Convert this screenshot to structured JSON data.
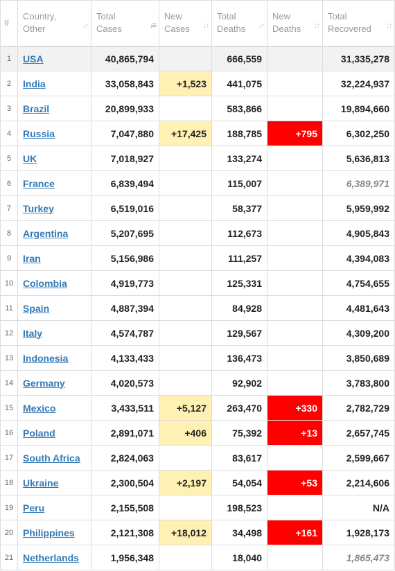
{
  "headers": {
    "num": "#",
    "country": [
      "Country,",
      "Other"
    ],
    "total_cases": [
      "Total",
      "Cases"
    ],
    "new_cases": [
      "New",
      "Cases"
    ],
    "total_deaths": [
      "Total",
      "Deaths"
    ],
    "new_deaths": [
      "New",
      "Deaths"
    ],
    "total_recovered": [
      "Total",
      "Recovered"
    ]
  },
  "sort_icon": "sort-arrows-icon",
  "rows": [
    {
      "idx": "1",
      "country": "USA",
      "total_cases": "40,865,794",
      "new_cases": "",
      "total_deaths": "666,559",
      "new_deaths": "",
      "total_recovered": "31,335,278",
      "highlight": true
    },
    {
      "idx": "2",
      "country": "India",
      "total_cases": "33,058,843",
      "new_cases": "+1,523",
      "total_deaths": "441,075",
      "new_deaths": "",
      "total_recovered": "32,224,937"
    },
    {
      "idx": "3",
      "country": "Brazil",
      "total_cases": "20,899,933",
      "new_cases": "",
      "total_deaths": "583,866",
      "new_deaths": "",
      "total_recovered": "19,894,660"
    },
    {
      "idx": "4",
      "country": "Russia",
      "total_cases": "7,047,880",
      "new_cases": "+17,425",
      "total_deaths": "188,785",
      "new_deaths": "+795",
      "total_recovered": "6,302,250"
    },
    {
      "idx": "5",
      "country": "UK",
      "total_cases": "7,018,927",
      "new_cases": "",
      "total_deaths": "133,274",
      "new_deaths": "",
      "total_recovered": "5,636,813"
    },
    {
      "idx": "6",
      "country": "France",
      "total_cases": "6,839,494",
      "new_cases": "",
      "total_deaths": "115,007",
      "new_deaths": "",
      "total_recovered": "6,389,971",
      "recovered_italic": true
    },
    {
      "idx": "7",
      "country": "Turkey",
      "total_cases": "6,519,016",
      "new_cases": "",
      "total_deaths": "58,377",
      "new_deaths": "",
      "total_recovered": "5,959,992"
    },
    {
      "idx": "8",
      "country": "Argentina",
      "total_cases": "5,207,695",
      "new_cases": "",
      "total_deaths": "112,673",
      "new_deaths": "",
      "total_recovered": "4,905,843"
    },
    {
      "idx": "9",
      "country": "Iran",
      "total_cases": "5,156,986",
      "new_cases": "",
      "total_deaths": "111,257",
      "new_deaths": "",
      "total_recovered": "4,394,083"
    },
    {
      "idx": "10",
      "country": "Colombia",
      "total_cases": "4,919,773",
      "new_cases": "",
      "total_deaths": "125,331",
      "new_deaths": "",
      "total_recovered": "4,754,655"
    },
    {
      "idx": "11",
      "country": "Spain",
      "total_cases": "4,887,394",
      "new_cases": "",
      "total_deaths": "84,928",
      "new_deaths": "",
      "total_recovered": "4,481,643"
    },
    {
      "idx": "12",
      "country": "Italy",
      "total_cases": "4,574,787",
      "new_cases": "",
      "total_deaths": "129,567",
      "new_deaths": "",
      "total_recovered": "4,309,200"
    },
    {
      "idx": "13",
      "country": "Indonesia",
      "total_cases": "4,133,433",
      "new_cases": "",
      "total_deaths": "136,473",
      "new_deaths": "",
      "total_recovered": "3,850,689"
    },
    {
      "idx": "14",
      "country": "Germany",
      "total_cases": "4,020,573",
      "new_cases": "",
      "total_deaths": "92,902",
      "new_deaths": "",
      "total_recovered": "3,783,800"
    },
    {
      "idx": "15",
      "country": "Mexico",
      "total_cases": "3,433,511",
      "new_cases": "+5,127",
      "total_deaths": "263,470",
      "new_deaths": "+330",
      "total_recovered": "2,782,729"
    },
    {
      "idx": "16",
      "country": "Poland",
      "total_cases": "2,891,071",
      "new_cases": "+406",
      "total_deaths": "75,392",
      "new_deaths": "+13",
      "total_recovered": "2,657,745"
    },
    {
      "idx": "17",
      "country": "South Africa",
      "total_cases": "2,824,063",
      "new_cases": "",
      "total_deaths": "83,617",
      "new_deaths": "",
      "total_recovered": "2,599,667"
    },
    {
      "idx": "18",
      "country": "Ukraine",
      "total_cases": "2,300,504",
      "new_cases": "+2,197",
      "total_deaths": "54,054",
      "new_deaths": "+53",
      "total_recovered": "2,214,606"
    },
    {
      "idx": "19",
      "country": "Peru",
      "total_cases": "2,155,508",
      "new_cases": "",
      "total_deaths": "198,523",
      "new_deaths": "",
      "total_recovered": "N/A"
    },
    {
      "idx": "20",
      "country": "Philippines",
      "total_cases": "2,121,308",
      "new_cases": "+18,012",
      "total_deaths": "34,498",
      "new_deaths": "+161",
      "total_recovered": "1,928,173"
    },
    {
      "idx": "21",
      "country": "Netherlands",
      "total_cases": "1,956,348",
      "new_cases": "",
      "total_deaths": "18,040",
      "new_deaths": "",
      "total_recovered": "1,865,473",
      "recovered_italic": true
    }
  ],
  "colors": {
    "link": "#337ab7",
    "new_cases_highlight": "#fff0b3",
    "new_deaths_highlight": "#ff0000",
    "first_row_bg": "#f2f2f2",
    "header_text": "#999999"
  }
}
